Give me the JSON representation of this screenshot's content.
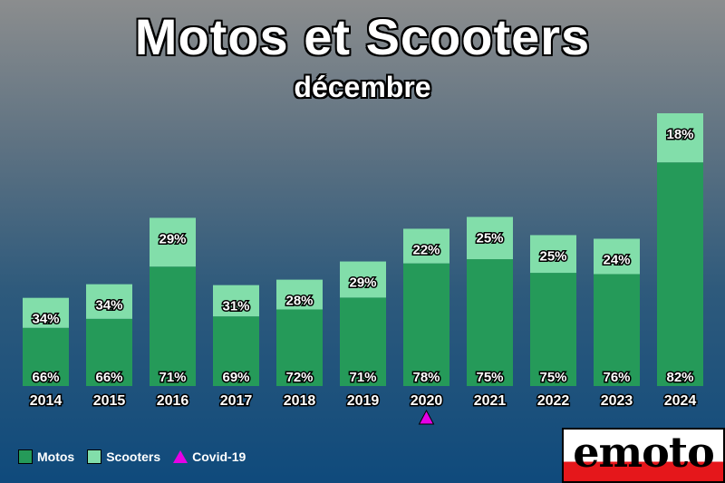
{
  "chart_data": {
    "type": "bar",
    "stacked": true,
    "title": "Motos et Scooters",
    "subtitle": "décembre",
    "categories": [
      "2014",
      "2015",
      "2016",
      "2017",
      "2018",
      "2019",
      "2020",
      "2021",
      "2022",
      "2023",
      "2024"
    ],
    "totals_relative": [
      97,
      112,
      185,
      111,
      117,
      137,
      173,
      186,
      166,
      162,
      300
    ],
    "series": [
      {
        "name": "Motos",
        "color": "#259a59",
        "share_labels": [
          "66%",
          "66%",
          "71%",
          "69%",
          "72%",
          "71%",
          "78%",
          "75%",
          "75%",
          "76%",
          "82%"
        ],
        "shares": [
          66,
          66,
          71,
          69,
          72,
          71,
          78,
          75,
          75,
          76,
          82
        ]
      },
      {
        "name": "Scooters",
        "color": "#82deaa",
        "share_labels": [
          "34%",
          "34%",
          "29%",
          "31%",
          "28%",
          "29%",
          "22%",
          "25%",
          "25%",
          "24%",
          "18%"
        ],
        "shares": [
          34,
          34,
          29,
          31,
          28,
          29,
          22,
          25,
          25,
          24,
          18
        ]
      }
    ],
    "markers": [
      {
        "category": "2020",
        "name": "Covid-19",
        "color": "#e600e6"
      }
    ],
    "legend_position": "bottom-left",
    "grid": false
  },
  "legend": {
    "motos": "Motos",
    "scooters": "Scooters",
    "covid": "Covid-19"
  },
  "logo": {
    "text": "emoto"
  }
}
